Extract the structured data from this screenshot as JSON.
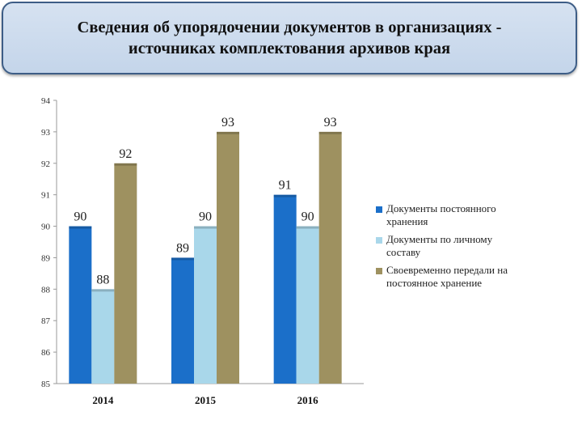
{
  "header": {
    "title_line1": "Сведения об упорядочении документов в организациях -",
    "title_line2": "источниках комплектования архивов края"
  },
  "chart_data": {
    "type": "bar",
    "title": "",
    "xlabel": "",
    "ylabel": "",
    "ylim": [
      85,
      94
    ],
    "ticks": [
      85,
      86,
      87,
      88,
      89,
      90,
      91,
      92,
      93,
      94
    ],
    "categories": [
      "2014",
      "2015",
      "2016"
    ],
    "grid": false,
    "legend_position": "right",
    "series": [
      {
        "name": "Документы постоянного хранения",
        "name_lines": [
          "Документы постоянного",
          "хранения"
        ],
        "color": "#1b6fc9",
        "values": [
          90,
          89,
          91
        ]
      },
      {
        "name": "Документы по личному составу",
        "name_lines": [
          "Документы по личному",
          "составу"
        ],
        "color": "#a9d7ea",
        "values": [
          88,
          90,
          90
        ]
      },
      {
        "name": "Своевременно передали на постоянное хранение",
        "name_lines": [
          "Своевременно передали на",
          "постоянное хранение"
        ],
        "color": "#9e9160",
        "values": [
          92,
          93,
          93
        ]
      }
    ]
  }
}
